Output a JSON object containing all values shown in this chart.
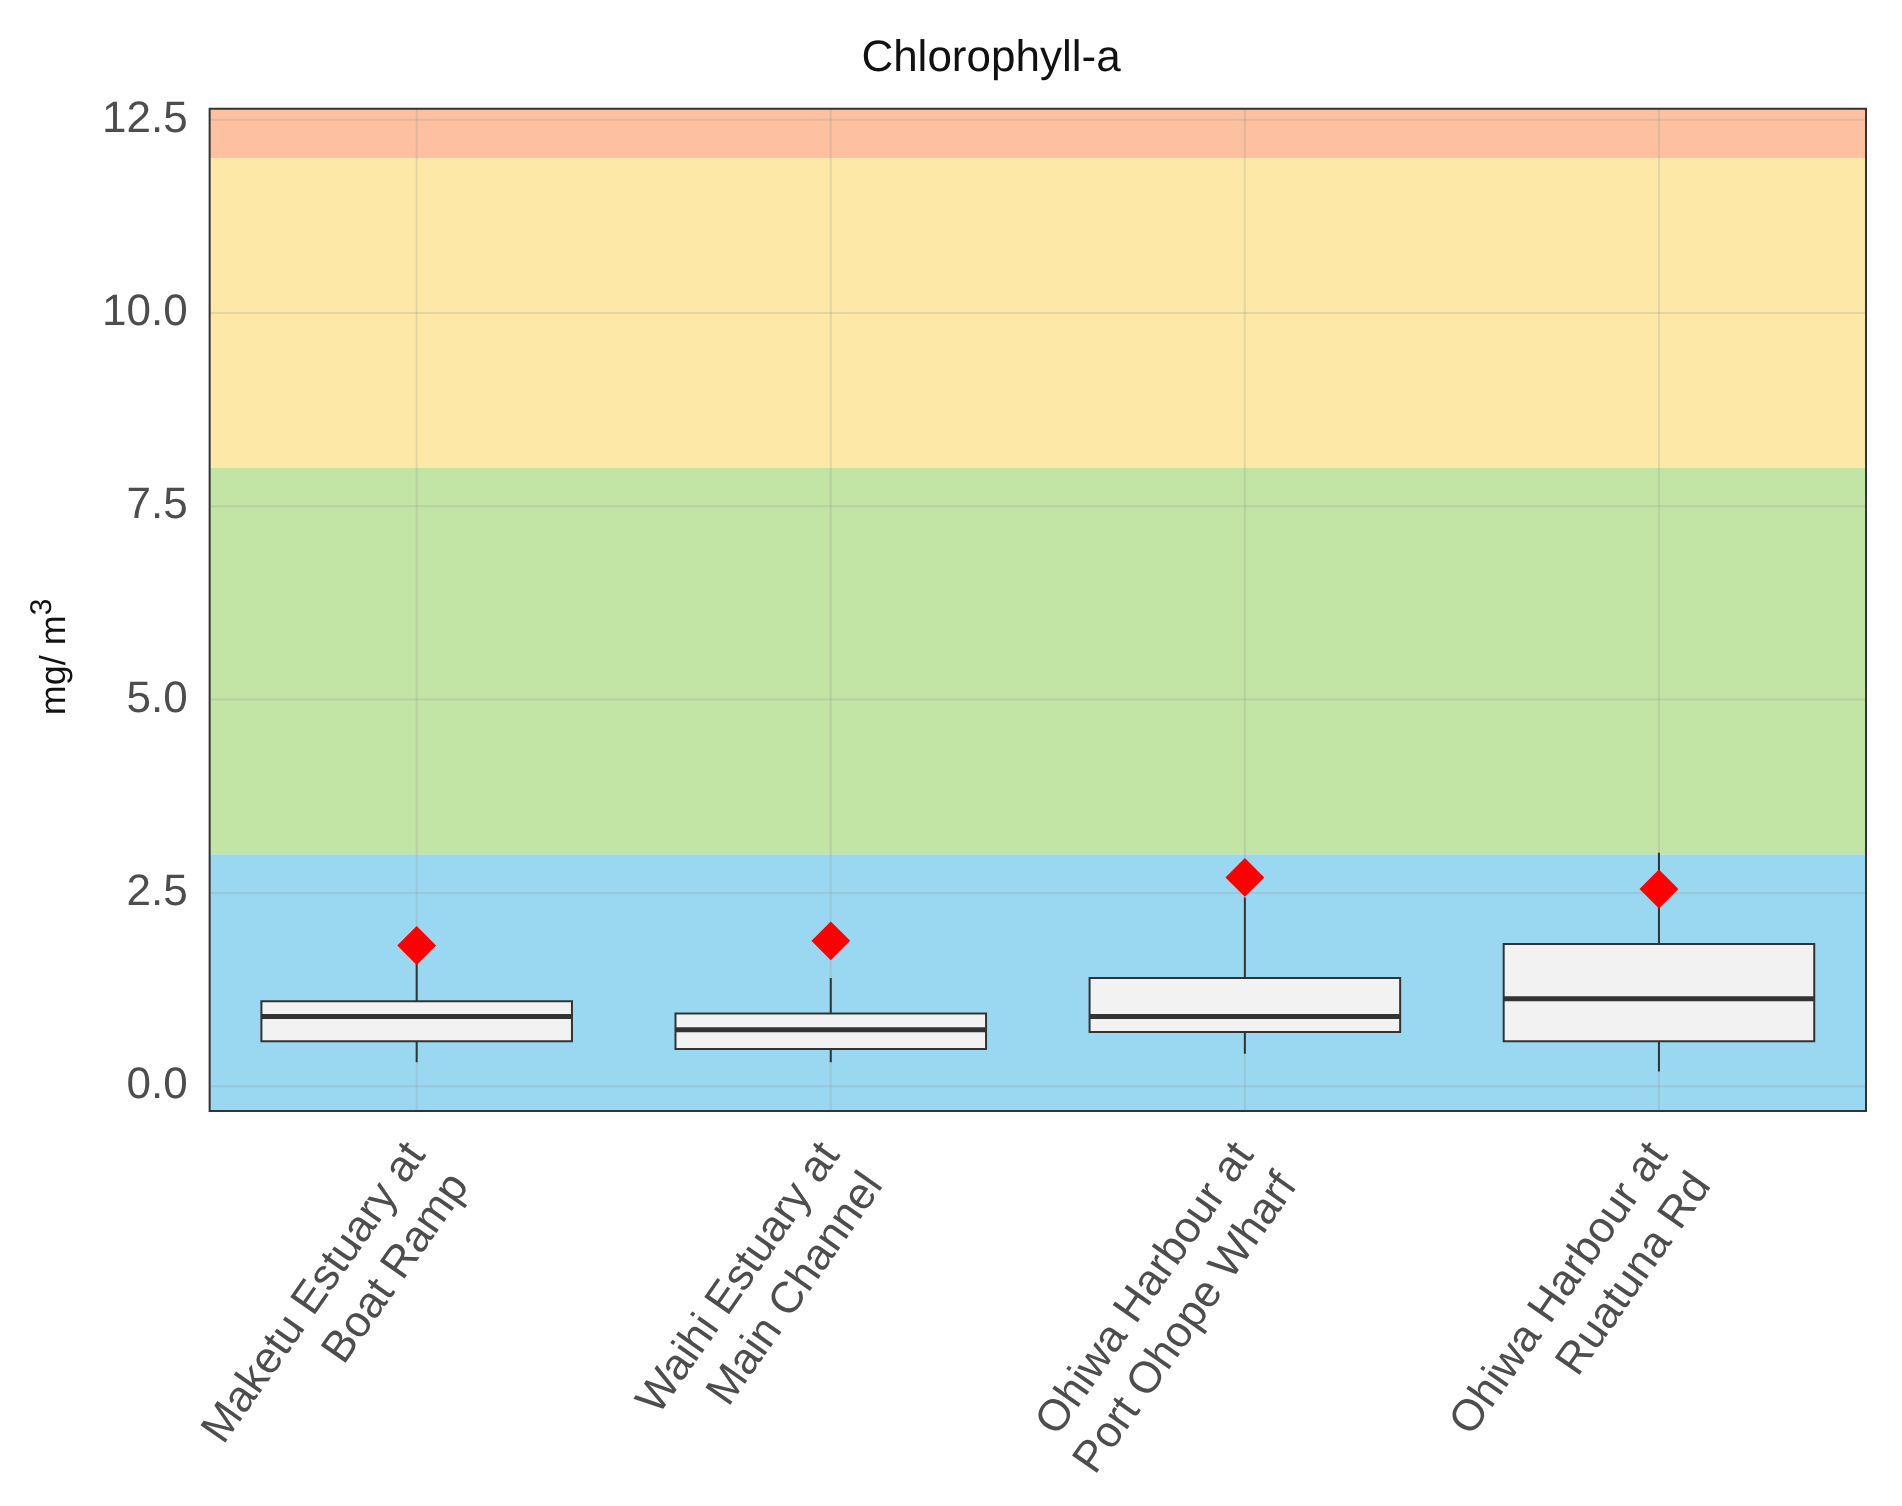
{
  "chart_data": {
    "type": "box",
    "title": "Chlorophyll-a",
    "ylabel": "mg/ m$^{3}$",
    "categories": [
      "Maketu Estuary at\nBoat Ramp",
      "Waihi Estuary at\nMain Channel",
      "Ohiwa Harbour at\nPort Ohope Wharf",
      "Ohiwa Harbour at\nRuatuna Rd"
    ],
    "boxes": [
      {
        "low": 0.31,
        "q1": 0.58,
        "median": 0.9,
        "q3": 1.1,
        "high": 1.62,
        "mean": 1.82
      },
      {
        "low": 0.31,
        "q1": 0.48,
        "median": 0.73,
        "q3": 0.94,
        "high": 1.4,
        "mean": 1.88
      },
      {
        "low": 0.42,
        "q1": 0.7,
        "median": 0.9,
        "q3": 1.4,
        "high": 2.44,
        "mean": 2.7
      },
      {
        "low": 0.19,
        "q1": 0.58,
        "median": 1.13,
        "q3": 1.84,
        "high": 3.02,
        "mean": 2.55
      }
    ],
    "color": "#f2f2f2",
    "ylim": [
      -0.32,
      12.64
    ],
    "yticks": [
      {
        "value": 0,
        "label": "0.0"
      },
      2.5,
      {
        "value": 10,
        "label": "10.0"
      },
      {
        "value": 7.5,
        "label": "7.5"
      },
      {
        "value": 5,
        "label": "5.0"
      },
      {
        "value": 12.5,
        "label": "12.5"
      }
    ],
    "bands": [
      {
        "axis": "y",
        "from": -0.32,
        "to": 3,
        "color": "#99d8f0"
      },
      {
        "axis": "y",
        "from": 3,
        "to": 8,
        "color": "#c2e4a4"
      },
      {
        "axis": "y",
        "from": 8,
        "to": 12,
        "color": "#fde8a8"
      },
      {
        "axis": "y",
        "from": 12,
        "to": 12.64,
        "color": "#fdc0a0"
      }
    ],
    "grid": true,
    "legend": false,
    "marker": "diamond"
  }
}
